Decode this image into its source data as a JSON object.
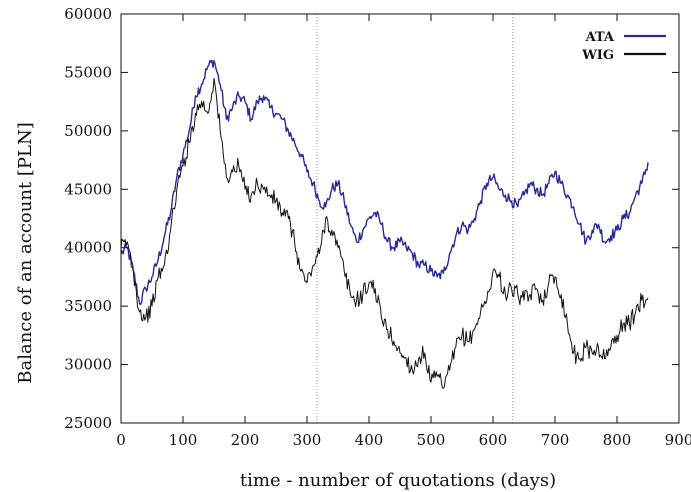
{
  "chart_data": {
    "type": "line",
    "xlabel": "time - number of quotations (days)",
    "ylabel": "Balance of an account   [PLN]",
    "xlim": [
      0,
      900
    ],
    "ylim": [
      25000,
      60000
    ],
    "x_ticks": [
      0,
      100,
      200,
      300,
      400,
      500,
      600,
      700,
      800,
      900
    ],
    "y_ticks": [
      25000,
      30000,
      35000,
      40000,
      45000,
      50000,
      55000,
      60000
    ],
    "vertical_markers": [
      316,
      632
    ],
    "legend_position": "top-right",
    "grid": false,
    "series": [
      {
        "name": "ATA",
        "color": "#2a2a96",
        "x": [
          0,
          10,
          20,
          30,
          40,
          50,
          60,
          70,
          80,
          90,
          100,
          110,
          120,
          130,
          140,
          150,
          160,
          170,
          180,
          190,
          200,
          210,
          220,
          230,
          240,
          250,
          260,
          270,
          280,
          290,
          300,
          310,
          320,
          330,
          340,
          350,
          360,
          370,
          380,
          390,
          400,
          410,
          420,
          430,
          440,
          450,
          460,
          470,
          480,
          490,
          500,
          510,
          520,
          530,
          540,
          550,
          560,
          570,
          580,
          590,
          600,
          610,
          620,
          630,
          640,
          650,
          660,
          670,
          680,
          690,
          700,
          710,
          720,
          730,
          740,
          750,
          760,
          770,
          780,
          790,
          800,
          810,
          820,
          830,
          840,
          850
        ],
        "values": [
          39500,
          40000,
          38000,
          35200,
          36500,
          37500,
          39000,
          41000,
          43000,
          46000,
          48000,
          50000,
          53000,
          54000,
          55500,
          56000,
          54000,
          51000,
          52000,
          53000,
          52500,
          51000,
          52500,
          53000,
          52000,
          51500,
          51000,
          50000,
          49000,
          48000,
          46500,
          45500,
          44000,
          43500,
          45000,
          45500,
          44000,
          42000,
          40500,
          41500,
          42500,
          43000,
          42000,
          40500,
          40000,
          40500,
          40000,
          39500,
          38500,
          38500,
          38000,
          37500,
          37800,
          39500,
          41000,
          42000,
          41500,
          42500,
          44000,
          45500,
          46000,
          45000,
          44500,
          44000,
          43500,
          44500,
          45500,
          45000,
          44500,
          45500,
          46500,
          45500,
          44500,
          43500,
          42000,
          40500,
          41500,
          42000,
          40500,
          41000,
          41500,
          42500,
          43000,
          44500,
          45500,
          47300
        ]
      },
      {
        "name": "WIG",
        "color": "#111111",
        "x": [
          0,
          10,
          20,
          30,
          40,
          50,
          60,
          70,
          80,
          90,
          100,
          110,
          120,
          130,
          140,
          150,
          160,
          170,
          180,
          190,
          200,
          210,
          220,
          230,
          240,
          250,
          260,
          270,
          280,
          290,
          300,
          310,
          320,
          330,
          340,
          350,
          360,
          370,
          380,
          390,
          400,
          410,
          420,
          430,
          440,
          450,
          460,
          470,
          480,
          490,
          500,
          510,
          520,
          530,
          540,
          550,
          560,
          570,
          580,
          590,
          600,
          610,
          620,
          630,
          640,
          650,
          660,
          670,
          680,
          690,
          700,
          710,
          720,
          730,
          740,
          750,
          760,
          770,
          780,
          790,
          800,
          810,
          820,
          830,
          840,
          850
        ],
        "values": [
          40000,
          40500,
          38000,
          34500,
          34000,
          35000,
          37500,
          38500,
          41500,
          45000,
          47000,
          49000,
          51500,
          52500,
          51500,
          54500,
          50000,
          46000,
          46500,
          47000,
          45000,
          44500,
          45500,
          45000,
          44500,
          44000,
          43000,
          42500,
          40500,
          38000,
          37000,
          38500,
          39500,
          42500,
          41500,
          40000,
          38000,
          36000,
          35500,
          36000,
          37000,
          36500,
          34000,
          33000,
          32000,
          31000,
          30500,
          29500,
          30500,
          31000,
          28500,
          29000,
          28000,
          29500,
          31500,
          32500,
          32000,
          33000,
          34500,
          35500,
          38000,
          37500,
          36000,
          36500,
          36000,
          35500,
          36000,
          36500,
          35500,
          37000,
          37500,
          36000,
          33500,
          31000,
          30500,
          31500,
          31000,
          31500,
          30500,
          31500,
          32500,
          33500,
          33500,
          34500,
          35500,
          35700
        ]
      }
    ]
  }
}
